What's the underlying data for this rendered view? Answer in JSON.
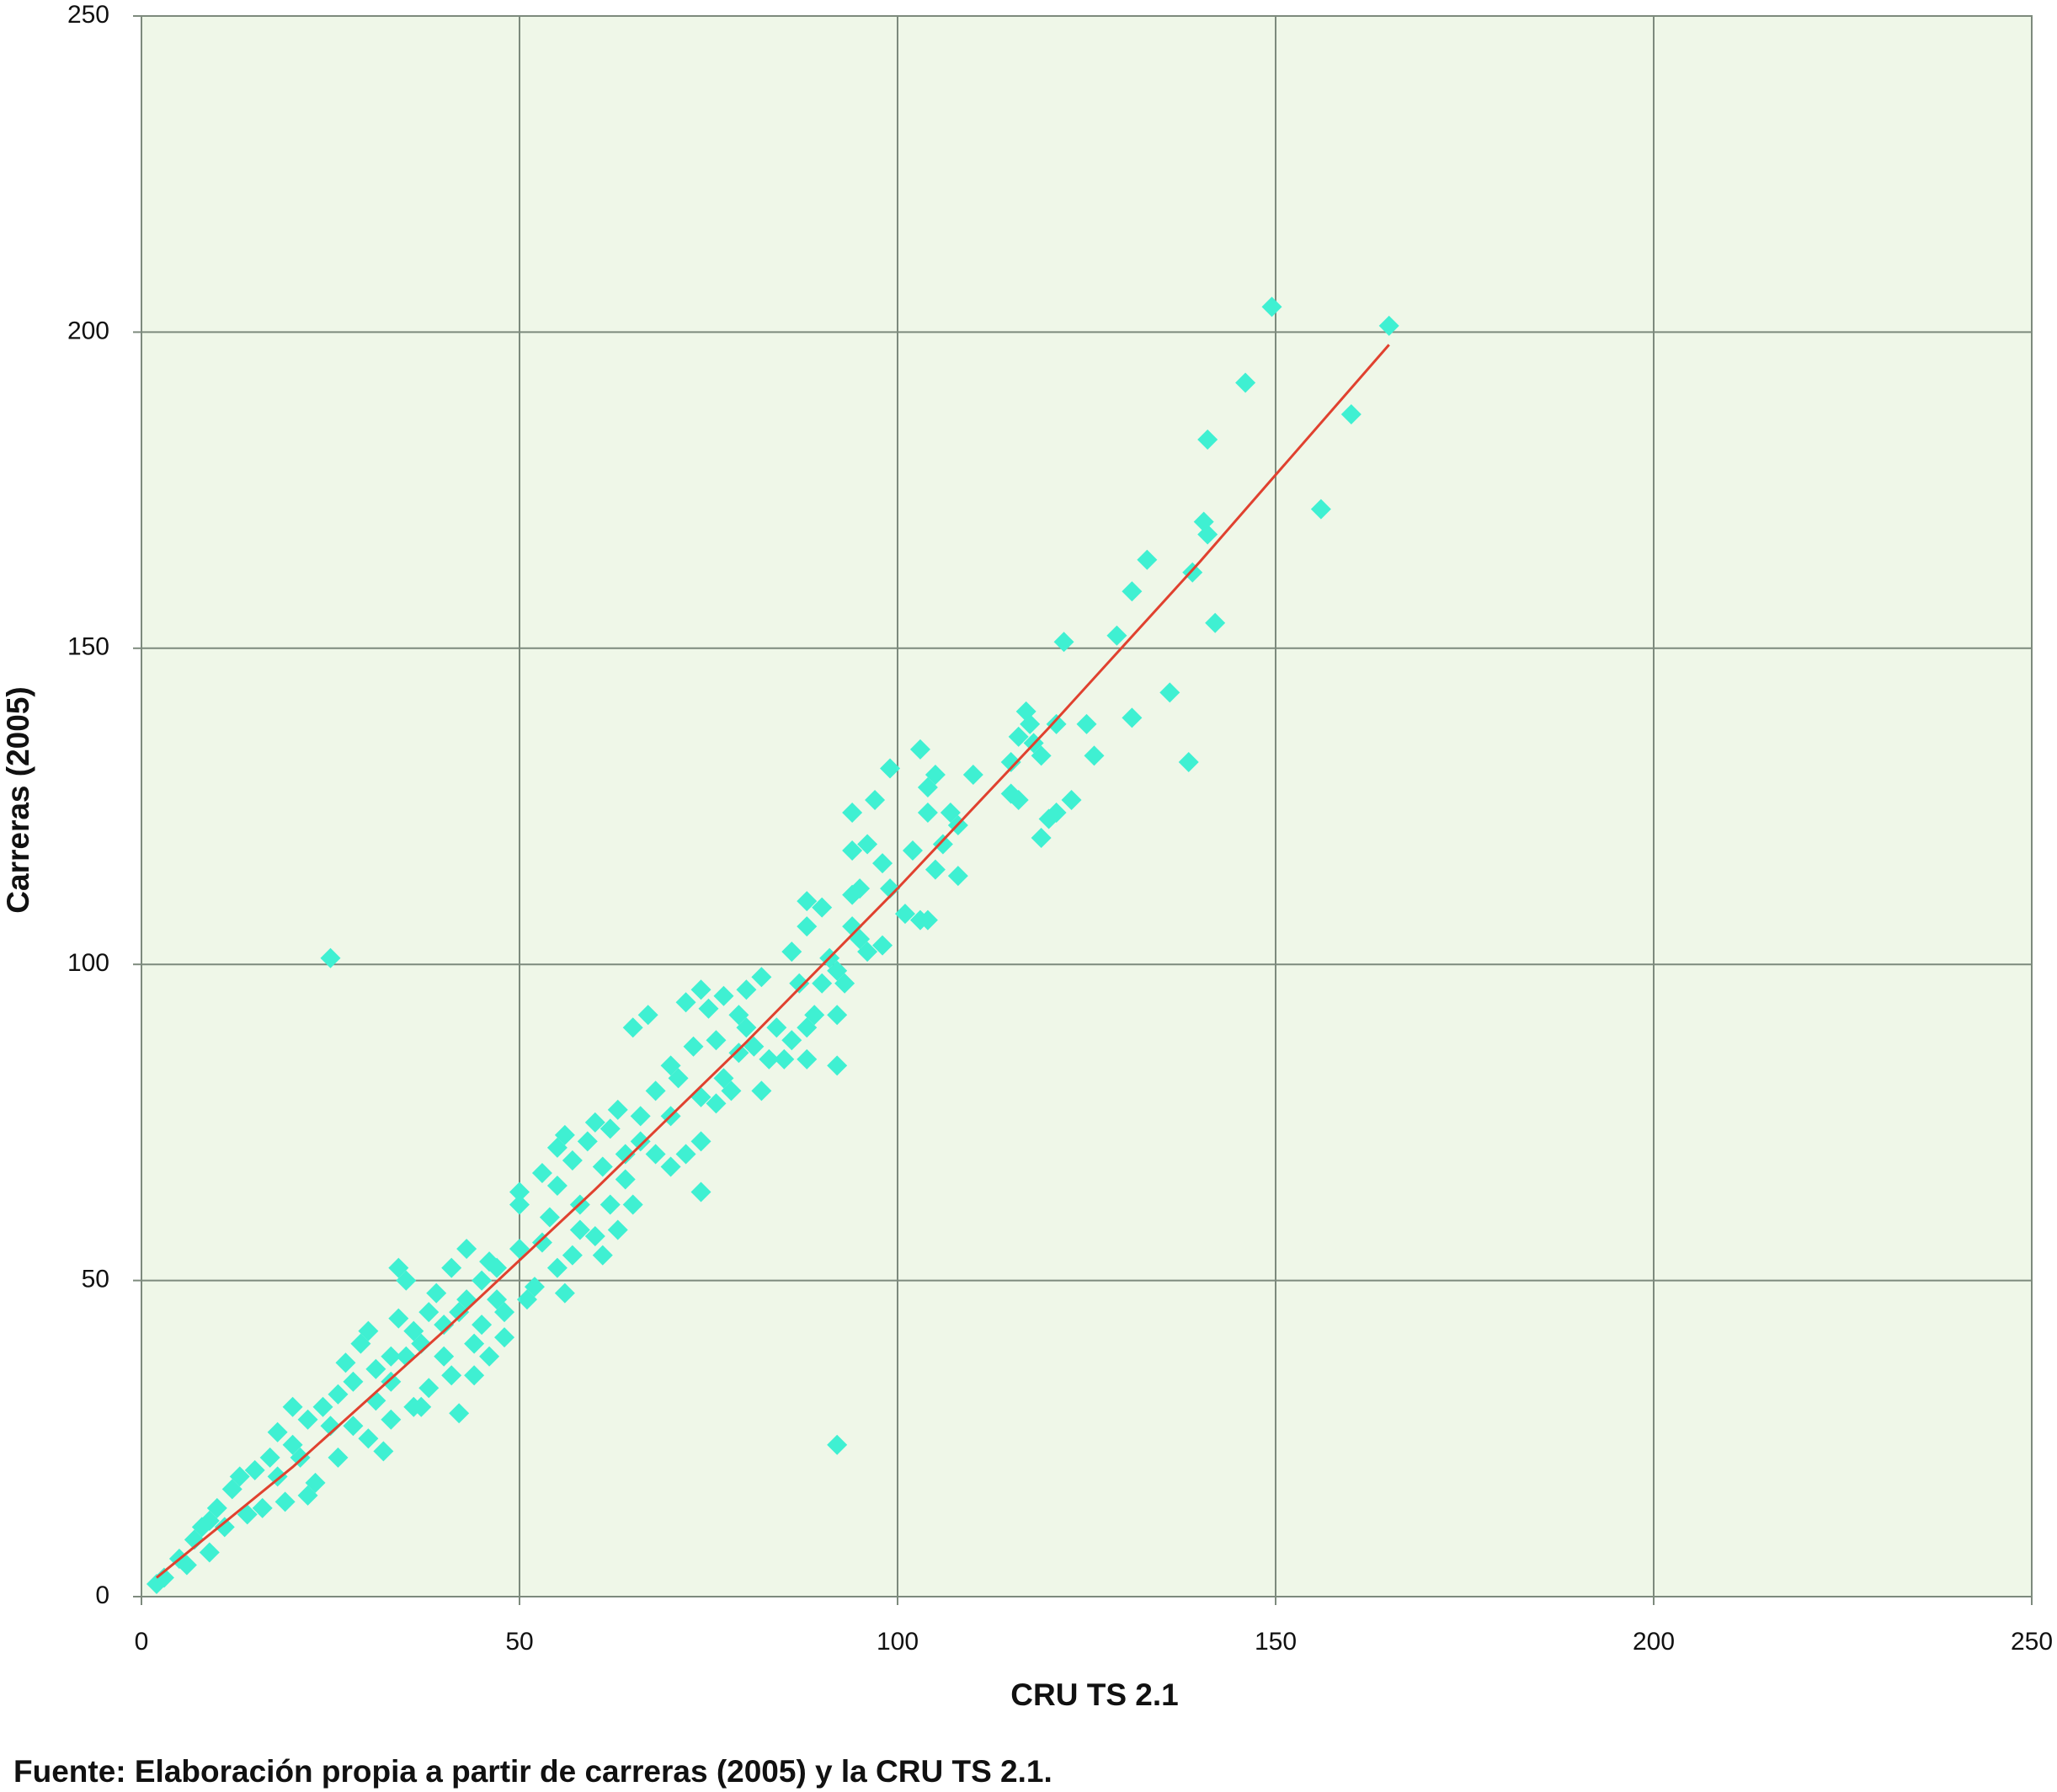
{
  "chart_data": {
    "type": "scatter",
    "xlabel": "CRU TS 2.1",
    "ylabel": "Carreras (2005)",
    "source": "Fuente: Elaboración propia a partir de carreras (2005) y la CRU TS 2.1.",
    "xlim": [
      0,
      250
    ],
    "ylim": [
      0,
      250
    ],
    "xticks": [
      0,
      50,
      100,
      150,
      200,
      250
    ],
    "yticks": [
      0,
      50,
      100,
      150,
      200,
      250
    ],
    "grid": true,
    "background": "#eff7e8",
    "x": [
      149.5,
      165,
      146,
      141,
      160,
      156,
      140.5,
      141,
      133,
      139,
      131,
      142,
      129,
      122,
      136,
      131,
      138.5,
      117,
      117.5,
      121,
      125,
      116,
      118,
      115,
      119,
      126,
      110,
      103,
      99,
      105,
      104,
      115,
      116,
      123,
      121,
      120,
      119,
      108,
      107,
      104,
      94,
      97,
      102,
      106,
      94,
      96,
      98,
      105,
      108,
      99,
      95,
      94,
      88,
      90,
      101,
      103,
      104,
      88,
      94,
      95,
      96,
      98,
      86,
      91,
      92,
      87,
      82,
      90,
      93,
      80,
      74,
      77,
      72,
      75,
      79,
      67,
      65,
      92,
      89,
      88,
      86,
      81,
      76,
      73,
      79,
      83,
      85,
      88,
      92,
      70,
      71,
      77,
      82,
      68,
      74,
      76,
      70,
      66,
      74,
      72,
      70,
      74,
      63,
      62,
      56,
      60,
      59,
      55,
      64,
      57,
      53,
      61,
      64,
      55,
      50,
      50,
      58,
      62,
      54,
      60,
      61,
      57,
      55,
      50,
      46,
      43,
      47,
      45,
      41,
      39,
      43,
      52,
      51,
      56,
      48,
      45,
      42,
      40,
      38,
      36,
      34,
      34,
      35,
      37,
      35,
      33,
      31,
      29,
      27,
      30,
      28,
      26,
      24,
      22,
      20,
      18,
      20,
      17,
      15,
      13,
      12,
      10,
      9,
      8,
      7,
      5,
      3,
      2,
      25,
      92,
      42,
      37,
      32,
      30,
      26,
      23,
      22,
      19,
      16,
      14,
      11,
      9,
      6,
      44,
      46,
      48,
      41,
      38,
      36,
      33,
      25,
      21,
      18,
      28,
      31,
      33,
      40,
      44,
      47,
      53,
      58,
      66,
      68,
      63,
      65,
      78,
      84,
      80
    ],
    "series": [
      {
        "color": "#3ff0d2",
        "values": [
          204,
          201,
          192,
          183,
          187,
          172,
          170,
          168,
          164,
          162,
          159,
          154,
          152,
          151,
          143,
          139,
          132,
          140,
          138,
          138,
          138,
          136,
          135,
          132,
          133,
          133,
          130,
          134,
          131,
          130,
          128,
          127,
          126,
          126,
          124,
          123,
          120,
          122,
          124,
          124,
          124,
          126,
          118,
          119,
          118,
          119,
          116,
          115,
          114,
          112,
          112,
          111,
          110,
          109,
          108,
          107,
          107,
          106,
          106,
          104,
          102,
          103,
          102,
          101,
          99,
          97,
          98,
          97,
          97,
          96,
          96,
          95,
          94,
          93,
          92,
          92,
          90,
          92,
          92,
          90,
          88,
          87,
          88,
          87,
          86,
          85,
          85,
          85,
          84,
          84,
          82,
          82,
          80,
          80,
          79,
          78,
          76,
          76,
          72,
          70,
          68,
          64,
          77,
          74,
          73,
          75,
          72,
          71,
          70,
          69,
          67,
          68,
          66,
          65,
          64,
          62,
          62,
          62,
          60,
          57,
          54,
          54,
          52,
          55,
          53,
          55,
          52,
          50,
          52,
          48,
          47,
          49,
          47,
          48,
          45,
          43,
          45,
          43,
          45,
          42,
          44,
          52,
          50,
          40,
          38,
          38,
          36,
          40,
          37,
          42,
          34,
          32,
          30,
          28,
          30,
          26,
          24,
          22,
          20,
          19,
          17,
          14,
          12,
          11,
          9,
          6,
          3,
          2,
          101,
          24,
          29,
          30,
          23,
          25,
          22,
          18,
          16,
          15,
          14,
          13,
          11,
          7,
          5,
          35,
          38,
          41,
          35,
          33,
          30,
          28,
          27,
          22,
          19,
          27,
          31,
          34,
          38,
          40,
          47,
          56,
          58,
          72,
          70,
          58,
          62,
          80,
          90,
          90
        ]
      }
    ],
    "trendline": {
      "color": "#e0412f",
      "x": [
        2,
        20,
        40,
        60,
        80,
        100,
        120,
        140,
        165
      ],
      "values": [
        3,
        20.5,
        42,
        64.4,
        87.7,
        112,
        137.4,
        163.7,
        198
      ]
    }
  }
}
